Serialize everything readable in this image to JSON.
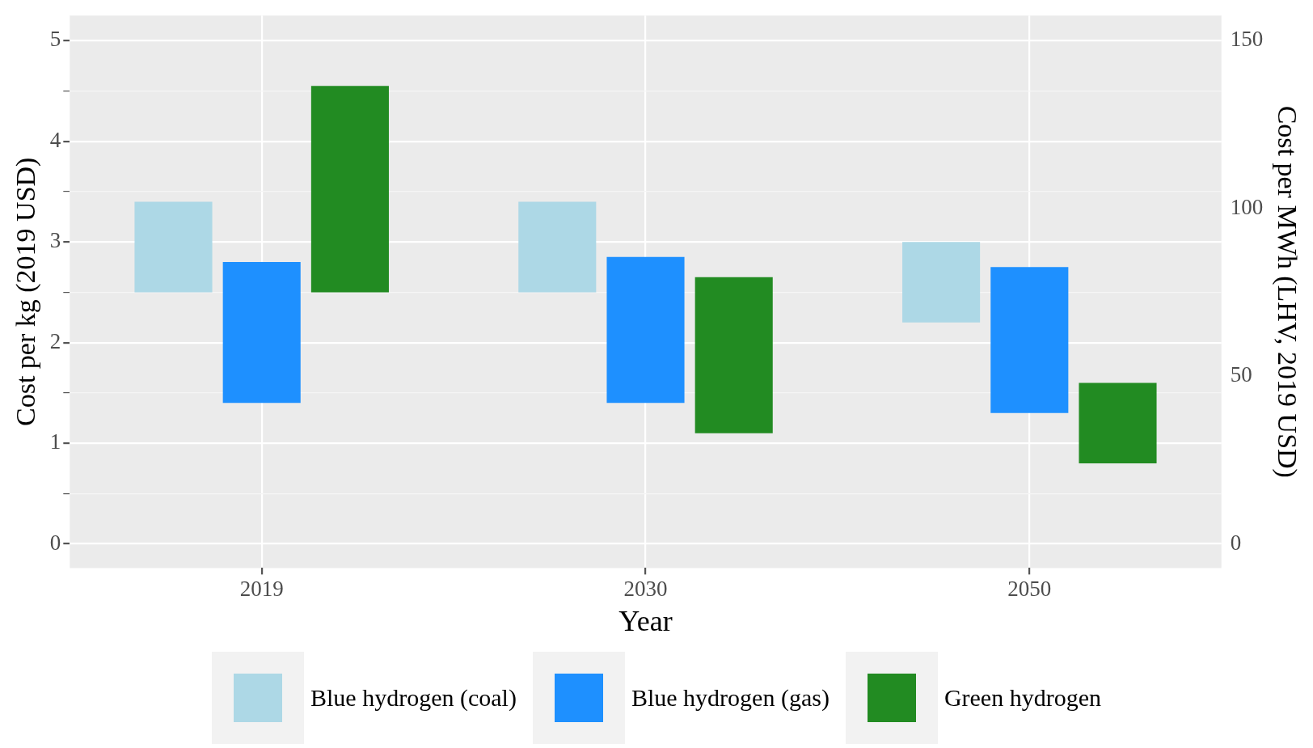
{
  "chart_data": {
    "type": "bar",
    "xlabel": "Year",
    "ylabel": "Cost per kg (2019 USD)",
    "y2label": "Cost per MWh (LHV, 2019 USD)",
    "categories": [
      "2019",
      "2030",
      "2050"
    ],
    "series": [
      {
        "name": "Blue hydrogen (coal)",
        "color": "#add8e6",
        "base": [
          2.5,
          2.5,
          2.2
        ],
        "values": [
          0.9,
          0.9,
          0.8
        ]
      },
      {
        "name": "Blue hydrogen (gas)",
        "color": "#1e90ff",
        "base": [
          1.4,
          1.4,
          1.3
        ],
        "values": [
          1.4,
          1.45,
          1.45
        ]
      },
      {
        "name": "Green hydrogen",
        "color": "#228b22",
        "base": [
          2.5,
          1.1,
          0.8
        ],
        "values": [
          2.05,
          1.55,
          0.8
        ]
      }
    ],
    "ylim": [
      -0.24,
      5.25
    ],
    "yticks": [
      0,
      {
        "value": 0.5,
        "label": null
      },
      1,
      {
        "value": 1.5,
        "label": null
      },
      2,
      {
        "value": 2.5,
        "label": null
      },
      3,
      {
        "value": 3.5,
        "label": null
      },
      4,
      {
        "value": 4.5,
        "label": null
      },
      5
    ],
    "y2lim": [
      -7.2,
      157.5
    ],
    "y2ticks": [
      0,
      50,
      100,
      150
    ],
    "grid": true,
    "legend": "bottom"
  }
}
